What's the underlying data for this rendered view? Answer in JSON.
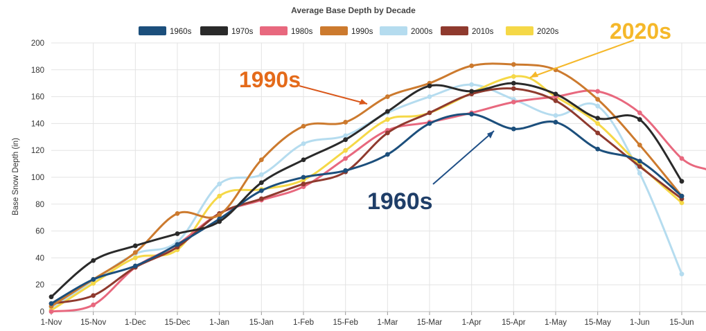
{
  "chart_data": {
    "type": "line",
    "title": "Average Base Depth by Decade",
    "xlabel": "",
    "ylabel": "Base Snow Depth (in)",
    "ylim": [
      0,
      200
    ],
    "yticks": [
      0,
      20,
      40,
      60,
      80,
      100,
      120,
      140,
      160,
      180,
      200
    ],
    "categories": [
      "1-Nov",
      "15-Nov",
      "1-Dec",
      "15-Dec",
      "1-Jan",
      "15-Jan",
      "1-Feb",
      "15-Feb",
      "1-Mar",
      "15-Mar",
      "1-Apr",
      "15-Apr",
      "1-May",
      "15-May",
      "1-Jun",
      "15-Jun"
    ],
    "grid": true,
    "legend_position": "top",
    "series": [
      {
        "name": "1960s",
        "color": "#1c4f7c",
        "values": [
          6,
          24,
          34,
          50,
          69,
          90,
          100,
          105,
          117,
          140,
          147,
          136,
          141,
          121,
          112,
          86
        ],
        "extension": null
      },
      {
        "name": "1970s",
        "color": "#2a2a2a",
        "values": [
          11,
          38,
          49,
          58,
          67,
          96,
          113,
          128,
          149,
          168,
          164,
          170,
          162,
          144,
          143,
          97
        ],
        "extension": null
      },
      {
        "name": "1980s",
        "color": "#e8687e",
        "values": [
          0,
          5,
          33,
          50,
          73,
          83,
          93,
          114,
          135,
          141,
          148,
          156,
          160,
          164,
          148,
          114
        ],
        "extension": 106
      },
      {
        "name": "1990s",
        "color": "#cc7a2e",
        "values": [
          4,
          24,
          44,
          73,
          72,
          113,
          138,
          141,
          160,
          170,
          183,
          184,
          180,
          158,
          124,
          86
        ],
        "extension": null
      },
      {
        "name": "2000s",
        "color": "#b5dcef",
        "values": [
          3,
          23,
          43,
          52,
          95,
          102,
          125,
          131,
          148,
          160,
          169,
          158,
          146,
          153,
          103,
          28
        ],
        "extension": null
      },
      {
        "name": "2010s",
        "color": "#8f3a2e",
        "values": [
          6,
          12,
          33,
          48,
          73,
          84,
          95,
          104,
          133,
          148,
          162,
          166,
          157,
          133,
          108,
          84
        ],
        "extension": null
      },
      {
        "name": "2020s",
        "color": "#f5d847",
        "values": [
          1,
          21,
          40,
          46,
          86,
          91,
          98,
          120,
          143,
          148,
          null,
          175,
          160,
          140,
          109,
          81
        ],
        "extension": null
      }
    ],
    "annotations": [
      {
        "text": "1990s",
        "color": "#e46a1a",
        "points_to": "1990s line near 15-Feb"
      },
      {
        "text": "2020s",
        "color": "#f5b82a",
        "points_to": "2020s line near 15-Apr"
      },
      {
        "text": "1960s",
        "color": "#1f3e68",
        "points_to": "1960s line near 15-Apr"
      }
    ]
  }
}
